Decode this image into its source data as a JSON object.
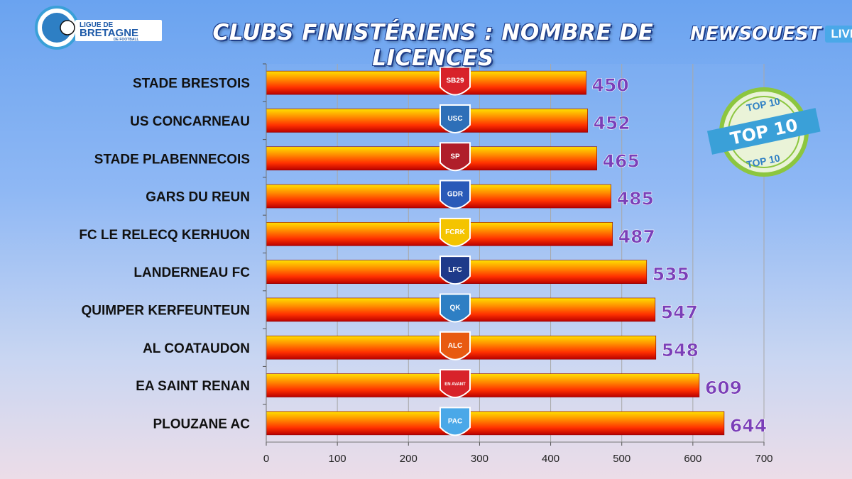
{
  "header": {
    "title": "CLUBS FINISTÉRIENS : NOMBRE DE LICENCES",
    "league_logo_text": [
      "LIGUE DE",
      "BRETAGNE",
      "DE FOOTBALL"
    ],
    "brand_name": "NEWSOUEST",
    "brand_tag": "LIVE"
  },
  "badge": {
    "top_text": "TOP 10",
    "main_text": "TOP 10",
    "bottom_text": "TOP 10"
  },
  "colors": {
    "bar_top": "#ffd200",
    "bar_mid": "#ff5a00",
    "bar_bottom": "#c40000",
    "value_text": "#7a3fb8",
    "title_outline": "#1e3e8a"
  },
  "chart_data": {
    "type": "bar",
    "orientation": "horizontal",
    "categories": [
      "STADE BRESTOIS",
      "US CONCARNEAU",
      "STADE PLABENNECOIS",
      "GARS DU REUN",
      "FC LE RELECQ KERHUON",
      "LANDERNEAU FC",
      "QUIMPER KERFEUNTEUN",
      "AL COATAUDON",
      "EA SAINT RENAN",
      "PLOUZANE AC"
    ],
    "values": [
      450,
      452,
      465,
      485,
      487,
      535,
      547,
      548,
      609,
      644
    ],
    "value_labels": [
      "450",
      "452",
      "465",
      "485",
      "487",
      "535",
      "547",
      "548",
      "609",
      "644"
    ],
    "club_logos": [
      "SB29",
      "USC",
      "SP",
      "GDR",
      "FCRK",
      "LFC",
      "QK",
      "ALC",
      "EN AVANT",
      "PAC"
    ],
    "xlim": [
      0,
      700
    ],
    "xticks": [
      "0",
      "100",
      "200",
      "300",
      "400",
      "500",
      "600",
      "700"
    ],
    "grid": true,
    "title": "CLUBS FINISTÉRIENS : NOMBRE DE LICENCES",
    "xlabel": "",
    "ylabel": ""
  }
}
